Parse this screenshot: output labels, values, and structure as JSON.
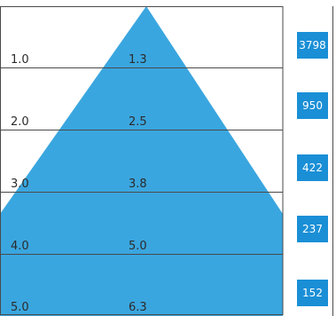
{
  "diagram": {
    "rows": [
      {
        "left_label": "1.0",
        "mid_label": "1.3",
        "count": "3798"
      },
      {
        "left_label": "2.0",
        "mid_label": "2.5",
        "count": "950"
      },
      {
        "left_label": "3.0",
        "mid_label": "3.8",
        "count": "422"
      },
      {
        "left_label": "4.0",
        "mid_label": "5.0",
        "count": "237"
      },
      {
        "left_label": "5.0",
        "mid_label": "6.3",
        "count": "152"
      }
    ],
    "colors": {
      "fill": "#3aa6df",
      "line": "#4a4a4a",
      "badge": "#1a8fd6",
      "badge_text": "#ffffff"
    }
  }
}
